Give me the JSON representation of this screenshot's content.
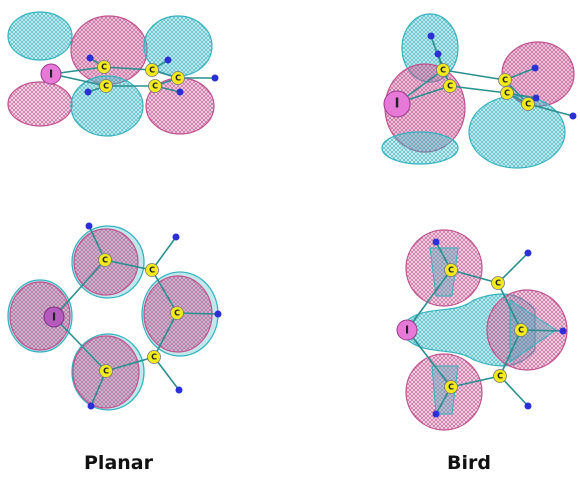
{
  "labels": {
    "planar": "Planar",
    "bird": "Bird"
  },
  "atoms": {
    "iodine": "I",
    "carbon": "C"
  },
  "colors": {
    "magenta_lobe": "#c2528f",
    "cyan_lobe": "#35b3c0",
    "iodine": "#e77ad8",
    "carbon": "#f2ea1c",
    "hydrogen": "#2b2fd6",
    "bond": "#2a8f8f"
  }
}
